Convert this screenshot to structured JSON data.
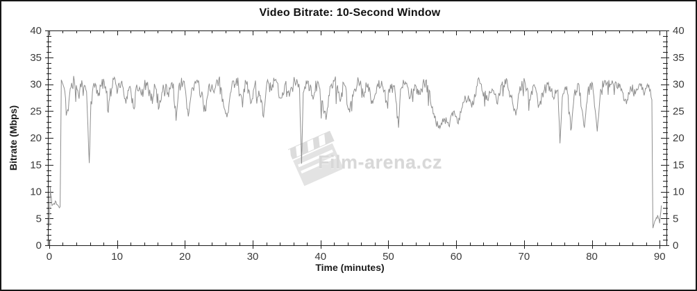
{
  "window": {
    "background": "#ffffff",
    "border_color": "#161616"
  },
  "watermark": {
    "text": "Film-arena.cz",
    "color": "#d4d4d4",
    "icon": "clapperboard-icon"
  },
  "chart_data": {
    "type": "line",
    "title": "Video Bitrate: 10-Second Window",
    "xlabel": "Time (minutes)",
    "ylabel": "Bitrate (Mbps)",
    "xlim": [
      -0.2,
      91
    ],
    "ylim": [
      0,
      40
    ],
    "x_major_ticks": [
      0,
      10,
      20,
      30,
      40,
      50,
      60,
      70,
      80,
      90
    ],
    "x_minor_step": 2,
    "y_major_ticks": [
      0,
      5,
      10,
      15,
      20,
      25,
      30,
      35,
      40
    ],
    "y_minor_step": 1,
    "grid": false,
    "legend": "none",
    "mirrored_axes": true,
    "line_color": "#8e8e8e",
    "axis_color": "#1a1a1a",
    "tick_label_color": "#3a3a3a",
    "noise": {
      "seed": 7,
      "dt": 0.1,
      "spike_chance": 0.05,
      "spike_scale": 2.0
    },
    "series": [
      {
        "name": "bitrate",
        "anchors": [
          [
            0,
            3.5,
            0.2
          ],
          [
            0.15,
            10.8,
            0.3
          ],
          [
            0.4,
            7.4,
            0.5
          ],
          [
            1.0,
            8.1,
            0.6
          ],
          [
            1.6,
            7.2,
            0.3
          ],
          [
            1.78,
            30.8,
            0
          ],
          [
            2.2,
            29.3,
            1.3
          ],
          [
            2.6,
            24.8,
            0.7
          ],
          [
            3.1,
            29.2,
            1.4
          ],
          [
            3.7,
            30.6,
            1.3
          ],
          [
            4.3,
            28.0,
            1.3
          ],
          [
            4.9,
            29.8,
            1.3
          ],
          [
            5.5,
            28.6,
            0.9
          ],
          [
            5.9,
            15.3,
            0.2
          ],
          [
            6.15,
            26.8,
            0.8
          ],
          [
            6.6,
            30.2,
            1.3
          ],
          [
            7.3,
            28.4,
            1.4
          ],
          [
            8.1,
            30.4,
            1.3
          ],
          [
            8.9,
            27.4,
            1.3
          ],
          [
            9.5,
            30.9,
            1.2
          ],
          [
            10.1,
            28.9,
            1.3
          ],
          [
            10.7,
            30.6,
            1.2
          ],
          [
            11.3,
            26.4,
            1.0
          ],
          [
            11.9,
            29.6,
            1.3
          ],
          [
            12.5,
            25.4,
            0.9
          ],
          [
            12.9,
            29.9,
            1.3
          ],
          [
            13.6,
            27.9,
            1.3
          ],
          [
            14.3,
            30.3,
            1.3
          ],
          [
            15.0,
            26.9,
            1.1
          ],
          [
            15.6,
            29.6,
            1.3
          ],
          [
            16.2,
            25.7,
            0.9
          ],
          [
            16.8,
            29.9,
            1.3
          ],
          [
            17.5,
            28.4,
            1.3
          ],
          [
            18.3,
            30.1,
            1.1
          ],
          [
            18.7,
            23.2,
            0.4
          ],
          [
            19.1,
            29.6,
            1.2
          ],
          [
            19.8,
            30.6,
            1.3
          ],
          [
            20.5,
            24.0,
            0.5
          ],
          [
            21.0,
            29.1,
            1.3
          ],
          [
            21.7,
            30.6,
            1.3
          ],
          [
            22.4,
            27.9,
            1.2
          ],
          [
            23.0,
            25.0,
            0.8
          ],
          [
            23.6,
            30.1,
            1.3
          ],
          [
            24.3,
            28.4,
            1.3
          ],
          [
            25.0,
            30.9,
            1.2
          ],
          [
            25.7,
            26.1,
            1.0
          ],
          [
            26.3,
            24.6,
            0.7
          ],
          [
            26.9,
            29.6,
            1.3
          ],
          [
            27.6,
            31.1,
            1.2
          ],
          [
            28.3,
            27.9,
            1.3
          ],
          [
            29.0,
            30.4,
            1.3
          ],
          [
            29.7,
            26.4,
            1.0
          ],
          [
            30.3,
            29.9,
            1.3
          ],
          [
            31.0,
            27.9,
            1.3
          ],
          [
            31.6,
            23.9,
            0.6
          ],
          [
            32.1,
            30.4,
            1.2
          ],
          [
            32.8,
            28.9,
            1.3
          ],
          [
            33.4,
            30.9,
            1.1
          ],
          [
            34.1,
            27.4,
            1.2
          ],
          [
            34.8,
            30.1,
            1.2
          ],
          [
            35.5,
            28.4,
            1.3
          ],
          [
            36.2,
            30.6,
            1.1
          ],
          [
            36.9,
            29.1,
            0.5
          ],
          [
            37.2,
            15.2,
            0.1
          ],
          [
            37.45,
            28.4,
            0.9
          ],
          [
            38.1,
            30.6,
            1.3
          ],
          [
            38.8,
            27.9,
            1.3
          ],
          [
            39.5,
            30.1,
            1.3
          ],
          [
            40.2,
            26.9,
            1.0
          ],
          [
            40.8,
            23.4,
            0.5
          ],
          [
            41.4,
            29.6,
            1.3
          ],
          [
            42.1,
            30.9,
            1.2
          ],
          [
            42.8,
            27.4,
            1.2
          ],
          [
            43.5,
            29.9,
            1.3
          ],
          [
            44.2,
            25.4,
            0.8
          ],
          [
            44.9,
            28.6,
            1.3
          ],
          [
            45.6,
            30.6,
            1.2
          ],
          [
            46.3,
            27.9,
            1.3
          ],
          [
            47.0,
            30.1,
            1.2
          ],
          [
            47.7,
            26.4,
            1.0
          ],
          [
            48.3,
            29.6,
            1.3
          ],
          [
            49.0,
            30.6,
            1.2
          ],
          [
            49.7,
            26.9,
            1.1
          ],
          [
            50.3,
            29.9,
            1.3
          ],
          [
            51.0,
            28.4,
            1.1
          ],
          [
            51.5,
            21.9,
            0.2
          ],
          [
            51.8,
            29.1,
            1.1
          ],
          [
            52.5,
            30.4,
            1.2
          ],
          [
            53.2,
            27.4,
            1.2
          ],
          [
            53.9,
            29.9,
            1.3
          ],
          [
            54.6,
            28.1,
            1.2
          ],
          [
            55.3,
            30.1,
            1.2
          ],
          [
            56.0,
            28.9,
            0.9
          ],
          [
            56.6,
            24.5,
            0.8
          ],
          [
            57.4,
            21.8,
            0.7
          ],
          [
            58.2,
            23.6,
            0.8
          ],
          [
            58.9,
            22.3,
            0.6
          ],
          [
            59.6,
            24.9,
            0.9
          ],
          [
            60.3,
            22.6,
            0.6
          ],
          [
            61.0,
            26.6,
            0.9
          ],
          [
            61.8,
            27.9,
            1.0
          ],
          [
            62.5,
            26.1,
            0.9
          ],
          [
            63.2,
            30.9,
            1.1
          ],
          [
            63.9,
            28.6,
            1.1
          ],
          [
            64.6,
            27.1,
            1.0
          ],
          [
            65.3,
            29.1,
            1.1
          ],
          [
            66.0,
            26.4,
            0.9
          ],
          [
            66.7,
            29.9,
            1.2
          ],
          [
            67.4,
            31.1,
            1.1
          ],
          [
            68.1,
            27.6,
            1.0
          ],
          [
            68.8,
            24.2,
            0.6
          ],
          [
            69.4,
            29.6,
            1.2
          ],
          [
            70.1,
            30.6,
            1.2
          ],
          [
            70.8,
            27.1,
            1.0
          ],
          [
            71.5,
            29.9,
            1.2
          ],
          [
            72.2,
            26.1,
            1.0
          ],
          [
            72.9,
            28.6,
            1.1
          ],
          [
            73.6,
            30.3,
            1.2
          ],
          [
            74.3,
            27.6,
            1.0
          ],
          [
            75.0,
            28.9,
            0.7
          ],
          [
            75.3,
            19.0,
            0.15
          ],
          [
            75.65,
            27.6,
            0.9
          ],
          [
            76.3,
            29.6,
            1.1
          ],
          [
            76.9,
            21.4,
            0.3
          ],
          [
            77.4,
            28.1,
            1.0
          ],
          [
            78.1,
            29.9,
            1.1
          ],
          [
            78.9,
            21.9,
            0.3
          ],
          [
            79.4,
            28.6,
            1.0
          ],
          [
            80.1,
            30.1,
            1.1
          ],
          [
            80.8,
            21.2,
            0.3
          ],
          [
            81.3,
            29.1,
            1.0
          ],
          [
            82.0,
            30.6,
            0.9
          ],
          [
            82.8,
            29.9,
            0.8
          ],
          [
            83.6,
            30.3,
            0.9
          ],
          [
            84.4,
            29.1,
            0.9
          ],
          [
            85.1,
            26.3,
            0.7
          ],
          [
            85.7,
            29.6,
            1.0
          ],
          [
            86.4,
            28.1,
            1.0
          ],
          [
            87.1,
            30.1,
            1.0
          ],
          [
            87.8,
            28.4,
            0.9
          ],
          [
            88.4,
            29.9,
            0.7
          ],
          [
            88.85,
            27.1,
            0.2
          ],
          [
            89.0,
            3.2,
            0.15
          ],
          [
            89.3,
            4.6,
            0.5
          ],
          [
            89.7,
            5.6,
            0.6
          ],
          [
            90.0,
            4.1,
            0.3
          ],
          [
            90.25,
            7.4,
            0.2
          ]
        ]
      }
    ]
  }
}
